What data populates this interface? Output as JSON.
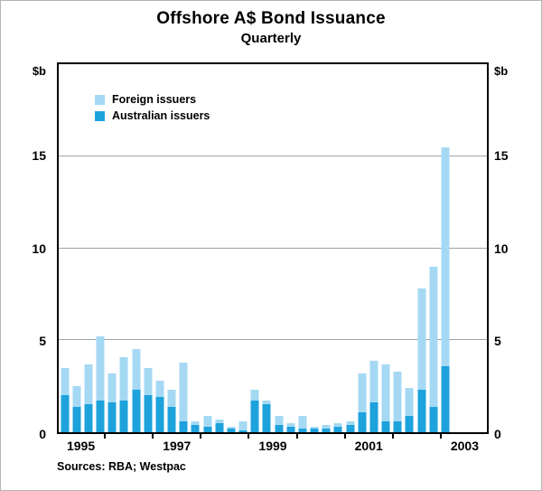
{
  "title": "Offshore A$ Bond Issuance",
  "subtitle": "Quarterly",
  "sources": "Sources: RBA; Westpac",
  "axis": {
    "unit_left": "$b",
    "unit_right": "$b"
  },
  "legend": {
    "foreign": "Foreign issuers",
    "australian": "Australian issuers"
  },
  "colors": {
    "foreign": "#a5d9f3",
    "australian": "#1da2dc",
    "grid": "#9aa4ac",
    "frame": "#000000"
  },
  "chart_data": {
    "type": "bar",
    "stacked": true,
    "title": "Offshore A$ Bond Issuance",
    "subtitle": "Quarterly",
    "ylabel": "$b",
    "ylim": [
      0,
      20
    ],
    "yticks": [
      0,
      5,
      10,
      15
    ],
    "grid": "horizontal",
    "legend_position": "top-left",
    "slots": 36,
    "xtick_years": [
      "1995",
      "1997",
      "1999",
      "2001",
      "2003"
    ],
    "categories": [
      "1995 Q1",
      "1995 Q2",
      "1995 Q3",
      "1995 Q4",
      "1996 Q1",
      "1996 Q2",
      "1996 Q3",
      "1996 Q4",
      "1997 Q1",
      "1997 Q2",
      "1997 Q3",
      "1997 Q4",
      "1998 Q1",
      "1998 Q2",
      "1998 Q3",
      "1998 Q4",
      "1999 Q1",
      "1999 Q2",
      "1999 Q3",
      "1999 Q4",
      "2000 Q1",
      "2000 Q2",
      "2000 Q3",
      "2000 Q4",
      "2001 Q1",
      "2001 Q2",
      "2001 Q3",
      "2001 Q4",
      "2002 Q1",
      "2002 Q2",
      "2002 Q3",
      "2002 Q4",
      "2003 Q1"
    ],
    "series": [
      {
        "name": "Australian issuers",
        "color_key": "australian",
        "values": [
          2.0,
          1.4,
          1.5,
          1.7,
          1.6,
          1.7,
          2.3,
          2.0,
          1.9,
          1.4,
          0.6,
          0.4,
          0.3,
          0.5,
          0.2,
          0.1,
          1.7,
          1.5,
          0.4,
          0.3,
          0.2,
          0.2,
          0.2,
          0.3,
          0.4,
          1.1,
          1.6,
          0.6,
          0.6,
          0.9,
          2.3,
          1.4,
          3.6
        ]
      },
      {
        "name": "Foreign issuers",
        "color_key": "foreign",
        "values": [
          1.5,
          1.1,
          2.2,
          3.5,
          1.6,
          2.4,
          2.2,
          1.5,
          0.9,
          0.9,
          3.2,
          0.2,
          0.6,
          0.2,
          0.1,
          0.5,
          0.6,
          0.2,
          0.5,
          0.2,
          0.7,
          0.1,
          0.2,
          0.2,
          0.2,
          2.1,
          2.3,
          3.1,
          2.7,
          1.5,
          5.5,
          7.6,
          11.9
        ]
      }
    ]
  }
}
